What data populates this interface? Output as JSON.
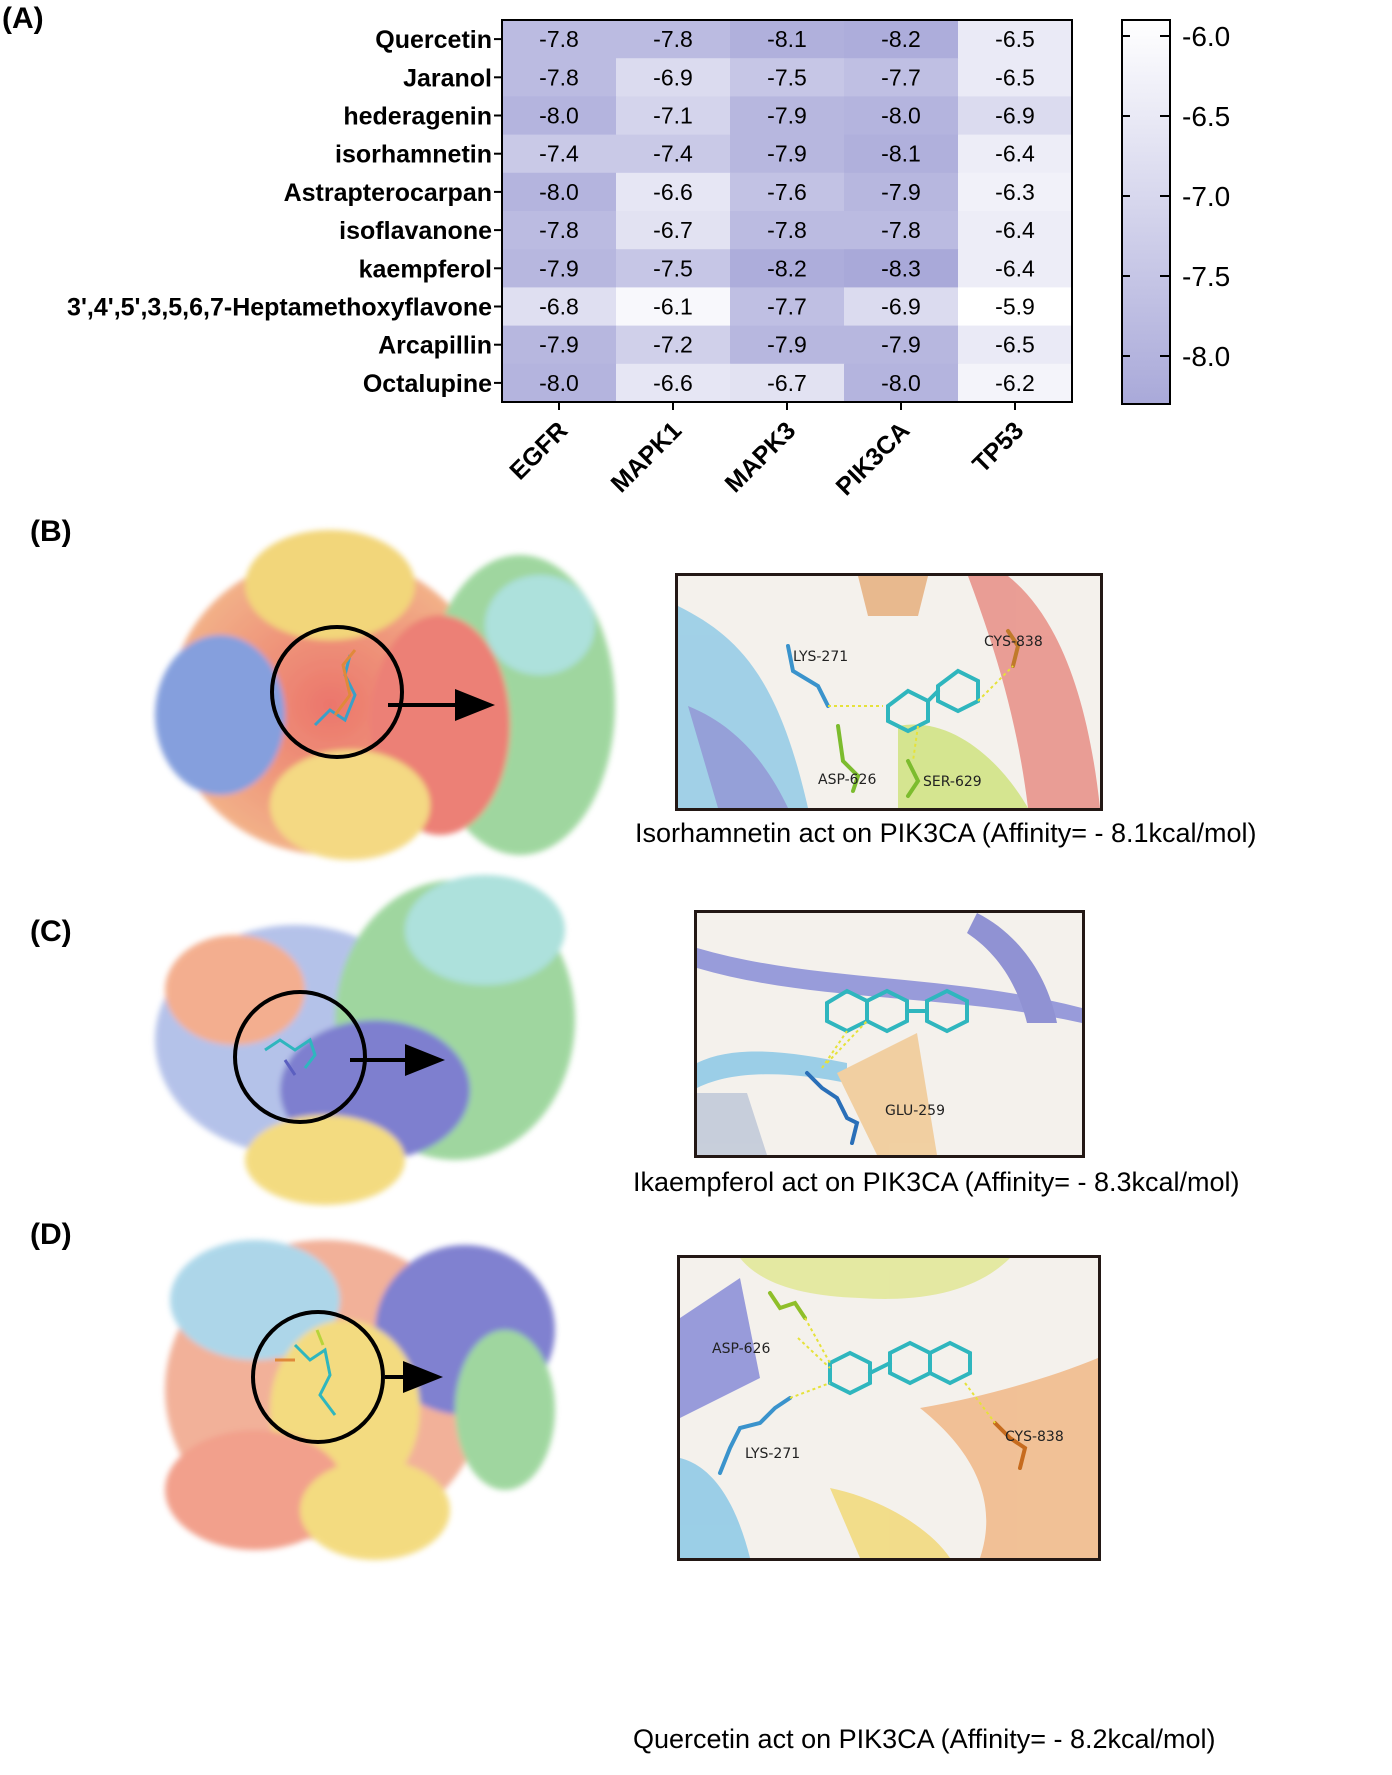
{
  "panels": {
    "a": {
      "label": "(A)"
    },
    "b": {
      "label": "(B)",
      "caption": "Isorhamnetin act on PIK3CA (Affinity= - 8.1kcal/mol)",
      "residues": [
        "LYS-271",
        "CYS-838",
        "ASP-626",
        "SER-629"
      ]
    },
    "c": {
      "label": "(C)",
      "caption": "Ikaempferol act on PIK3CA (Affinity= - 8.3kcal/mol)",
      "residues": [
        "GLU-259"
      ]
    },
    "d": {
      "label": "(D)",
      "caption": "Quercetin act on PIK3CA (Affinity= - 8.2kcal/mol)",
      "residues": [
        "ASP-626",
        "LYS-271",
        "CYS-838"
      ]
    }
  },
  "chart_data": {
    "type": "heatmap",
    "rows": [
      "Quercetin",
      "Jaranol",
      "hederagenin",
      "isorhamnetin",
      "Astrapterocarpan",
      "isoflavanone",
      "kaempferol",
      "3',4',5',3,5,6,7-Heptamethoxyflavone",
      "Arcapillin",
      "Octalupine"
    ],
    "columns": [
      "EGFR",
      "MAPK1",
      "MAPK3",
      "PIK3CA",
      "TP53"
    ],
    "values": [
      [
        -7.8,
        -7.8,
        -8.1,
        -8.2,
        -6.5
      ],
      [
        -7.8,
        -6.9,
        -7.5,
        -7.7,
        -6.5
      ],
      [
        -8.0,
        -7.1,
        -7.9,
        -8.0,
        -6.9
      ],
      [
        -7.4,
        -7.4,
        -7.9,
        -8.1,
        -6.4
      ],
      [
        -8.0,
        -6.6,
        -7.6,
        -7.9,
        -6.3
      ],
      [
        -7.8,
        -6.7,
        -7.8,
        -7.8,
        -6.4
      ],
      [
        -7.9,
        -7.5,
        -8.2,
        -8.3,
        -6.4
      ],
      [
        -6.8,
        -6.1,
        -7.7,
        -6.9,
        -5.9
      ],
      [
        -7.9,
        -7.2,
        -7.9,
        -7.9,
        -6.5
      ],
      [
        -8.0,
        -6.6,
        -6.7,
        -8.0,
        -6.2
      ]
    ],
    "colorbar": {
      "ticks": [
        "-6.0",
        "-6.5",
        "-7.0",
        "-7.5",
        "-8.0"
      ],
      "range": [
        -8.3,
        -5.9
      ],
      "low_color": "#a9a9d9",
      "high_color": "#ffffff"
    }
  }
}
